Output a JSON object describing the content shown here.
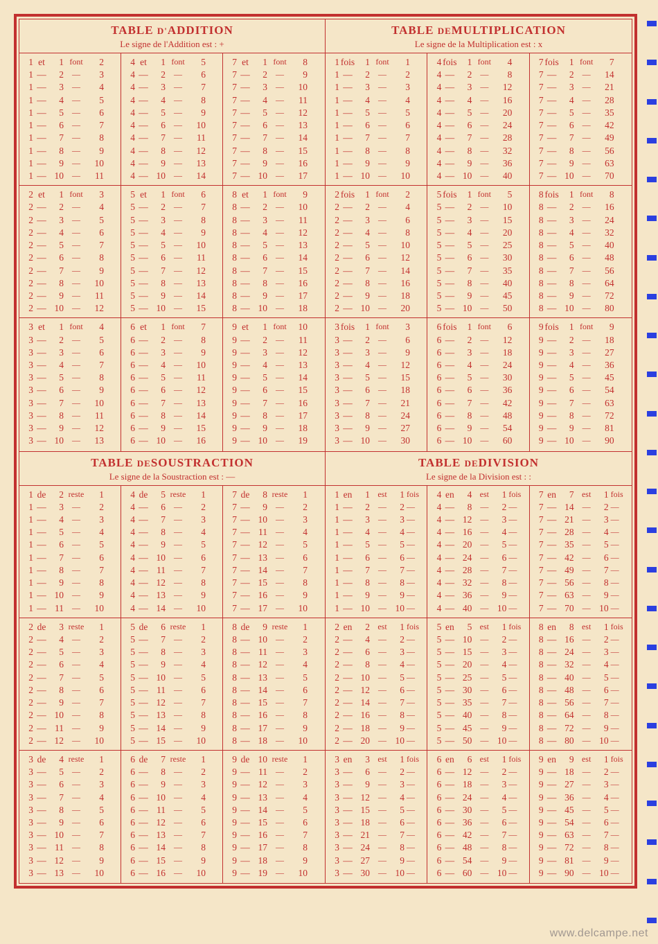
{
  "colors": {
    "ink": "#c2302f",
    "paper": "#f5e6c8",
    "rail": "#2b3fe0"
  },
  "watermark": "www.delcampe.net",
  "sections": [
    {
      "title_main": "TABLE",
      "title_sc": "D'",
      "title_rest": "ADDITION",
      "subtitle": "Le signe de l'Addition est : +",
      "first_word": "et",
      "mid_word": "font",
      "cont": "—",
      "op": "add",
      "starts": [
        1,
        4,
        7,
        2,
        5,
        8,
        3,
        6,
        9
      ]
    },
    {
      "title_main": "TABLE",
      "title_sc": "DE",
      "title_rest": "MULTIPLICATION",
      "subtitle": "Le signe de la Multiplication est : x",
      "first_word": "fois",
      "mid_word": "font",
      "cont": "—",
      "op": "mul",
      "starts": [
        1,
        4,
        7,
        2,
        5,
        8,
        3,
        6,
        9
      ]
    },
    {
      "title_main": "TABLE",
      "title_sc": "DE",
      "title_rest": "SOUSTRACTION",
      "subtitle": "Le signe de la Soustraction est : —",
      "first_word": "de",
      "mid_word": "reste",
      "cont": "—",
      "op": "sub",
      "starts": [
        1,
        4,
        7,
        2,
        5,
        8,
        3,
        6,
        9
      ]
    },
    {
      "title_main": "TABLE",
      "title_sc": "DE",
      "title_rest": "DIVISION",
      "subtitle": "Le signe de la Division est : :",
      "first_word": "en",
      "mid_word": "est",
      "mid_extra": "fois",
      "cont": "—",
      "op": "div",
      "starts": [
        1,
        4,
        7,
        2,
        5,
        8,
        3,
        6,
        9
      ]
    }
  ],
  "rail_ticks": 24
}
